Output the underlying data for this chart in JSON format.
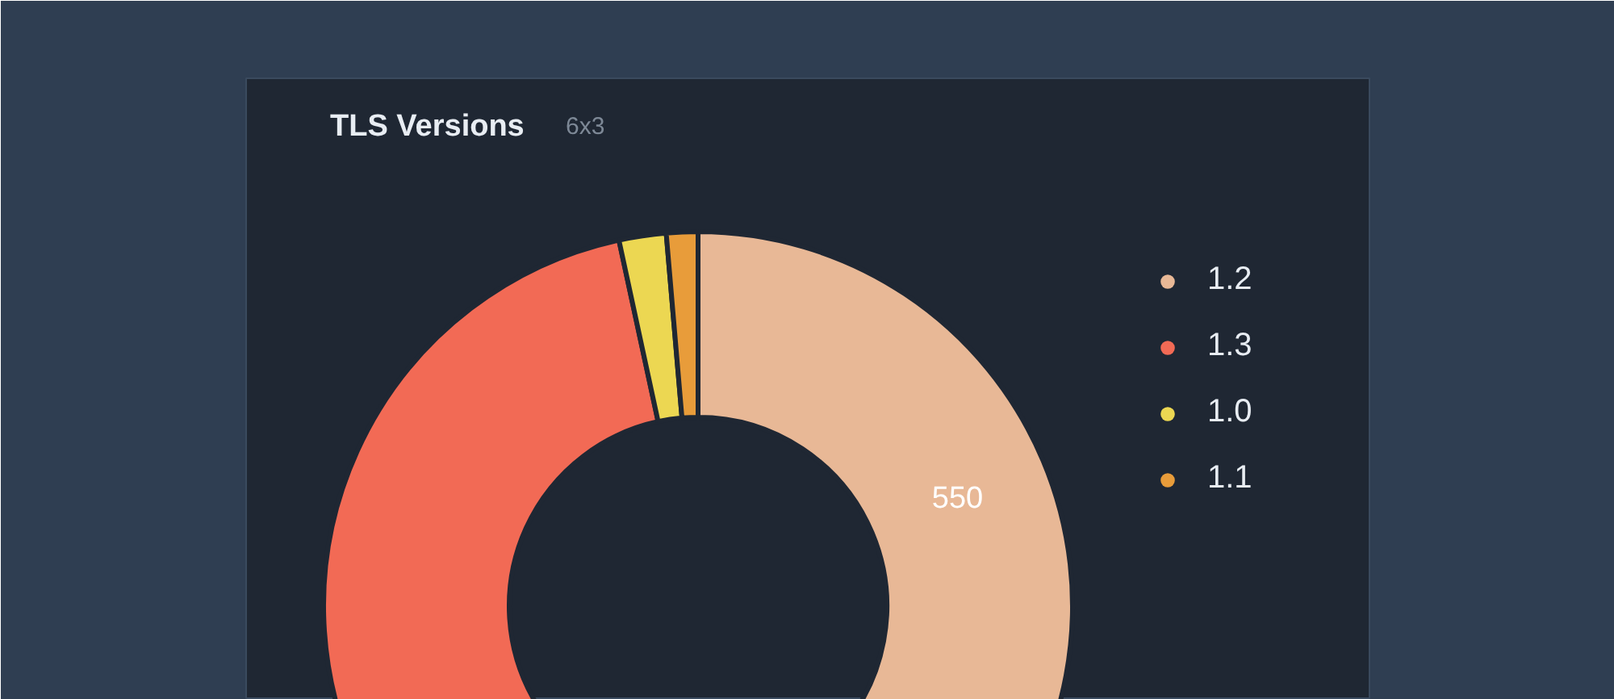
{
  "chart_data": {
    "type": "donut",
    "title": "TLS Versions",
    "subtitle": "6x3",
    "categories": [
      "1.2",
      "1.3",
      "1.0",
      "1.1"
    ],
    "values": [
      550,
      875,
      30,
      20
    ],
    "colors": [
      "#e8b896",
      "#f26a55",
      "#ecd752",
      "#e89c3a"
    ],
    "value_labels": [
      "550",
      null,
      null,
      null
    ],
    "legend": "top right"
  }
}
